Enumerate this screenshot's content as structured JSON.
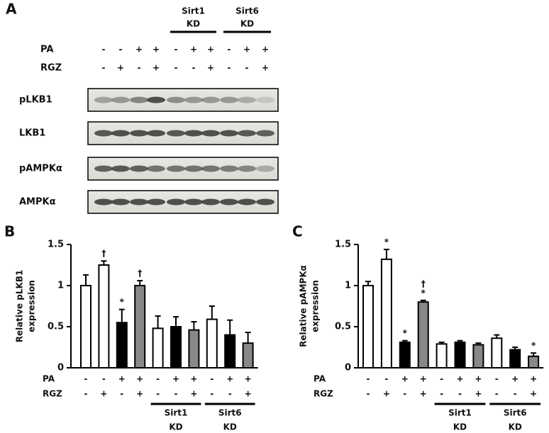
{
  "panel_a": {
    "label": "A",
    "groups": [
      [
        "Sirt1",
        "KD"
      ],
      [
        "Sirt6",
        "KD"
      ]
    ],
    "rows": [
      {
        "label": "PA",
        "signs": [
          "-",
          "-",
          "+",
          "+",
          "-",
          "+",
          "+",
          "-",
          "+",
          "+"
        ]
      },
      {
        "label": "RGZ",
        "signs": [
          "-",
          "+",
          "-",
          "+",
          "-",
          "-",
          "+",
          "-",
          "-",
          "+"
        ]
      }
    ],
    "blots": [
      "pLKB1",
      "LKB1",
      "pAMPKα",
      "AMPKα"
    ]
  },
  "chart_data": [
    {
      "type": "bar",
      "panel": "B",
      "ylabel": [
        "Relative pLKB1",
        "expression"
      ],
      "values": [
        1.0,
        1.25,
        0.55,
        1.0,
        0.48,
        0.5,
        0.46,
        0.59,
        0.4,
        0.3
      ],
      "errors": [
        0.13,
        0.05,
        0.16,
        0.06,
        0.15,
        0.12,
        0.1,
        0.16,
        0.18,
        0.13
      ],
      "colors": [
        "#ffffff",
        "#ffffff",
        "#000000",
        "#888888",
        "#ffffff",
        "#000000",
        "#888888",
        "#ffffff",
        "#000000",
        "#888888"
      ],
      "markers": [
        [],
        [
          "†"
        ],
        [
          "*"
        ],
        [
          "†"
        ],
        [],
        [],
        [],
        [],
        [],
        []
      ],
      "ylim": [
        0,
        1.5
      ],
      "yticks": [
        0,
        0.5,
        1,
        1.5
      ],
      "rows": [
        {
          "label": "PA",
          "signs": [
            "-",
            "-",
            "+",
            "+",
            "-",
            "+",
            "+",
            "-",
            "+",
            "+"
          ]
        },
        {
          "label": "RGZ",
          "signs": [
            "-",
            "+",
            "-",
            "+",
            "-",
            "-",
            "+",
            "-",
            "-",
            "+"
          ]
        }
      ],
      "groups": [
        [
          "Sirt1",
          "KD"
        ],
        [
          "Sirt6",
          "KD"
        ]
      ]
    },
    {
      "type": "bar",
      "panel": "C",
      "ylabel": [
        "Relative pAMPKα",
        "expression"
      ],
      "values": [
        1.0,
        1.32,
        0.31,
        0.8,
        0.29,
        0.31,
        0.28,
        0.36,
        0.22,
        0.14
      ],
      "errors": [
        0.05,
        0.12,
        0.02,
        0.02,
        0.02,
        0.02,
        0.02,
        0.04,
        0.03,
        0.04
      ],
      "colors": [
        "#ffffff",
        "#ffffff",
        "#000000",
        "#888888",
        "#ffffff",
        "#000000",
        "#888888",
        "#ffffff",
        "#000000",
        "#888888"
      ],
      "markers": [
        [],
        [
          "*"
        ],
        [
          "*"
        ],
        [
          "†",
          "*"
        ],
        [],
        [],
        [],
        [],
        [],
        [
          "*"
        ]
      ],
      "ylim": [
        0,
        1.5
      ],
      "yticks": [
        0,
        0.5,
        1,
        1.5
      ],
      "rows": [
        {
          "label": "PA",
          "signs": [
            "-",
            "-",
            "+",
            "+",
            "-",
            "+",
            "+",
            "-",
            "+",
            "+"
          ]
        },
        {
          "label": "RGZ",
          "signs": [
            "-",
            "+",
            "-",
            "+",
            "-",
            "-",
            "+",
            "-",
            "-",
            "+"
          ]
        }
      ],
      "groups": [
        [
          "Sirt1",
          "KD"
        ],
        [
          "Sirt6",
          "KD"
        ]
      ]
    }
  ]
}
